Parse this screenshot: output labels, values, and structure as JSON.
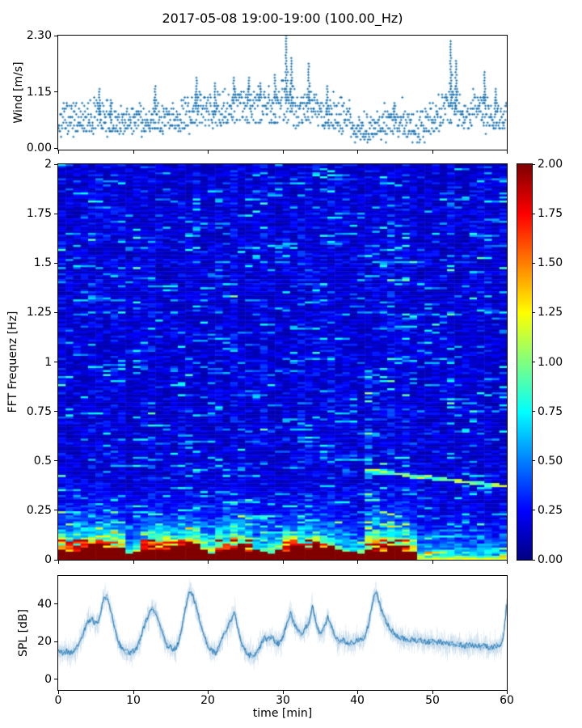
{
  "title": "2017-05-08 19:00-19:00 (100.00_Hz)",
  "colors": {
    "series_blue": "#1f77b4",
    "axis": "#000000",
    "background": "#ffffff"
  },
  "x_axis": {
    "label": "time [min]",
    "min": 0,
    "max": 60,
    "ticks": [
      {
        "v": 0,
        "label": "0"
      },
      {
        "v": 10,
        "label": "10"
      },
      {
        "v": 20,
        "label": "20"
      },
      {
        "v": 30,
        "label": "30"
      },
      {
        "v": 40,
        "label": "40"
      },
      {
        "v": 50,
        "label": "50"
      },
      {
        "v": 60,
        "label": "60"
      }
    ]
  },
  "chart_data": [
    {
      "type": "scatter",
      "name": "wind-speed",
      "ylabel": "Wind [m/s]",
      "ylim": [
        0,
        2.3
      ],
      "yticks": [
        {
          "v": 0.0,
          "label": "0.00"
        },
        {
          "v": 1.15,
          "label": "1.15"
        },
        {
          "v": 2.3,
          "label": "2.30"
        }
      ],
      "marker": "plus",
      "quantize": 0.0575,
      "spread": 0.27,
      "samples_per_minute": 10,
      "mean_profile_step_min": 1,
      "mean_profile": [
        0.55,
        0.6,
        0.55,
        0.65,
        0.6,
        0.7,
        0.65,
        0.6,
        0.55,
        0.5,
        0.6,
        0.65,
        0.6,
        0.7,
        0.6,
        0.65,
        0.7,
        0.75,
        0.85,
        0.9,
        0.8,
        0.75,
        0.8,
        0.9,
        1.0,
        0.95,
        0.9,
        0.95,
        0.85,
        0.9,
        1.0,
        0.9,
        0.8,
        0.95,
        0.85,
        0.8,
        0.7,
        0.75,
        0.7,
        0.6,
        0.45,
        0.4,
        0.45,
        0.5,
        0.55,
        0.6,
        0.55,
        0.5,
        0.45,
        0.55,
        0.6,
        0.75,
        0.9,
        0.85,
        0.7,
        0.65,
        0.9,
        0.8,
        0.65,
        0.7,
        0.75
      ],
      "gust_spikes": [
        [
          5.5,
          1.2
        ],
        [
          7,
          1.05
        ],
        [
          13,
          1.3
        ],
        [
          18.5,
          1.5
        ],
        [
          21,
          1.35
        ],
        [
          23.5,
          1.45
        ],
        [
          25.5,
          1.5
        ],
        [
          27,
          1.35
        ],
        [
          29,
          1.5
        ],
        [
          30.5,
          2.3
        ],
        [
          31.2,
          1.9
        ],
        [
          33.5,
          1.75
        ],
        [
          36,
          1.3
        ],
        [
          45,
          1.0
        ],
        [
          52.5,
          2.25
        ],
        [
          53.2,
          1.8
        ],
        [
          57,
          1.55
        ],
        [
          58.5,
          1.2
        ]
      ]
    },
    {
      "type": "heatmap",
      "name": "fft-spectrogram",
      "ylabel": "FFT Frequenz [Hz]",
      "ylim": [
        0,
        2
      ],
      "yticks": [
        {
          "v": 0,
          "label": "0"
        },
        {
          "v": 0.25,
          "label": "0.25"
        },
        {
          "v": 0.5,
          "label": "0.5"
        },
        {
          "v": 0.75,
          "label": "0.75"
        },
        {
          "v": 1,
          "label": "1"
        },
        {
          "v": 1.25,
          "label": "1.25"
        },
        {
          "v": 1.5,
          "label": "1.5"
        },
        {
          "v": 1.75,
          "label": "1.75"
        },
        {
          "v": 2,
          "label": "2"
        }
      ],
      "colormap": "jet",
      "value_range": [
        0,
        2
      ],
      "cols": 60,
      "rows": 196,
      "background": {
        "base": 0.1,
        "variation": 0.13,
        "streak_probability": 0.07,
        "streak_boost": 0.45
      },
      "low_freq_boost": {
        "amplitude": 2.3,
        "decay_hz": 0.085
      },
      "column_activity": [
        1.0,
        1.0,
        1.15,
        1.2,
        1.15,
        1.2,
        1.25,
        1.15,
        0.9,
        0.45,
        0.5,
        0.95,
        1.05,
        1.2,
        1.1,
        1.0,
        1.15,
        1.25,
        1.1,
        0.8,
        0.7,
        1.1,
        1.2,
        1.25,
        1.3,
        1.15,
        0.6,
        0.55,
        0.6,
        0.65,
        1.0,
        1.1,
        0.95,
        1.05,
        1.1,
        0.95,
        0.9,
        0.6,
        0.55,
        0.5,
        0.45,
        0.9,
        1.2,
        1.15,
        1.05,
        1.0,
        0.95,
        0.85,
        0.35,
        0.4,
        0.35,
        0.3,
        0.35,
        0.3,
        0.3,
        0.28,
        0.3,
        0.28,
        0.3,
        0.32
      ],
      "saturated_bottom": {
        "t_end": 47.5,
        "base_h": 0.012,
        "act_h": 0.045
      },
      "bottom_line_after": {
        "t_start": 47.5,
        "value": 1.1
      },
      "drifting_tone": {
        "t_start": 41.5,
        "t_end": 60,
        "f_start": 0.45,
        "f_end": 0.37,
        "value": 1.0
      },
      "faint_line": {
        "t_start": 47,
        "t_end": 57,
        "freq": 0.12,
        "value": 0.6
      },
      "vertical_band": {
        "t": 42,
        "width": 1.2,
        "f_max": 1.0,
        "probability": 0.3,
        "boost": 0.3
      },
      "colorbar": {
        "ticks": [
          {
            "v": 0.0,
            "label": "0.00"
          },
          {
            "v": 0.25,
            "label": "0.25"
          },
          {
            "v": 0.5,
            "label": "0.50"
          },
          {
            "v": 0.75,
            "label": "0.75"
          },
          {
            "v": 1.0,
            "label": "1.00"
          },
          {
            "v": 1.25,
            "label": "1.25"
          },
          {
            "v": 1.5,
            "label": "1.50"
          },
          {
            "v": 1.75,
            "label": "1.75"
          },
          {
            "v": 2.0,
            "label": "2.00"
          }
        ]
      }
    },
    {
      "type": "line",
      "name": "spl",
      "ylabel": "SPL [dB]",
      "ylim": [
        -5.6,
        55
      ],
      "yticks": [
        {
          "v": 0,
          "label": "0"
        },
        {
          "v": 20,
          "label": "20"
        },
        {
          "v": 40,
          "label": "40"
        }
      ],
      "x_step_min": 0.5,
      "noise_band_db": 3.2,
      "values": [
        15,
        14,
        15,
        14,
        15,
        17,
        21,
        27,
        31,
        32,
        29,
        33,
        43,
        44,
        36,
        27,
        20,
        16,
        15,
        14,
        15,
        17,
        22,
        29,
        34,
        38,
        36,
        29,
        23,
        18,
        17,
        16,
        19,
        27,
        38,
        47,
        44,
        37,
        29,
        23,
        17,
        15,
        14,
        17,
        23,
        27,
        31,
        36,
        27,
        19,
        15,
        13,
        13,
        14,
        18,
        22,
        21,
        23,
        20,
        19,
        23,
        29,
        35,
        30,
        26,
        24,
        27,
        31,
        39,
        28,
        24,
        27,
        33,
        28,
        22,
        20,
        21,
        20,
        19,
        20,
        21,
        21,
        23,
        30,
        42,
        46,
        39,
        33,
        29,
        26,
        24,
        22,
        22,
        21,
        21,
        21,
        20,
        21,
        20,
        20,
        20,
        19,
        20,
        19,
        19,
        19,
        18,
        19,
        18,
        18,
        18,
        18,
        18,
        17,
        18,
        17,
        17,
        18,
        18,
        22,
        44
      ]
    }
  ]
}
